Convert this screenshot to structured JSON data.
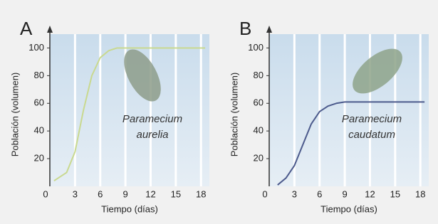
{
  "chart_data": [
    {
      "type": "line",
      "panel_label": "A",
      "y_label": "Población (volumen)",
      "x_label": "Tiempo (días)",
      "annotation": [
        "Paramecium",
        "aurelia"
      ],
      "x": [
        0.5,
        1,
        2,
        3,
        4,
        5,
        6,
        7,
        8,
        9,
        12,
        15,
        18.5
      ],
      "series": [
        {
          "color": "#c9d98f",
          "values": [
            4,
            6,
            10,
            25,
            55,
            80,
            93,
            98,
            100,
            100,
            100,
            100,
            100
          ]
        }
      ],
      "xlim": [
        0,
        19
      ],
      "ylim": [
        0,
        110
      ],
      "xticks": [
        0,
        3,
        6,
        9,
        12,
        15,
        18
      ],
      "yticks": [
        20,
        40,
        60,
        80,
        100
      ],
      "xgrid": true
    },
    {
      "type": "line",
      "panel_label": "B",
      "y_label": "Población (volumen)",
      "x_label": "Tiempo (días)",
      "annotation": [
        "Paramecium",
        "caudatum"
      ],
      "x": [
        1,
        2,
        3,
        4,
        5,
        6,
        7,
        8,
        9,
        12,
        15,
        18.5
      ],
      "series": [
        {
          "color": "#4c5a8c",
          "values": [
            1,
            6,
            15,
            30,
            45,
            54,
            58,
            60,
            61,
            61,
            61,
            61
          ]
        }
      ],
      "xlim": [
        0,
        19
      ],
      "ylim": [
        0,
        110
      ],
      "xticks": [
        0,
        3,
        6,
        9,
        12,
        15,
        18
      ],
      "yticks": [
        20,
        40,
        60,
        80,
        100
      ],
      "xgrid": true
    }
  ]
}
